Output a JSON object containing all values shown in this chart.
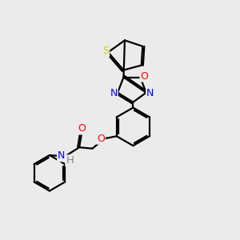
{
  "bg_color": "#ebebeb",
  "bond_color": "#000000",
  "bond_width": 1.6,
  "atom_colors": {
    "S": "#cccc00",
    "O": "#ff0000",
    "N": "#0000ff",
    "H": "#888888",
    "C": "#000000"
  },
  "font_size_atoms": 8.5,
  "fig_size": [
    3.0,
    3.0
  ],
  "dpi": 100
}
